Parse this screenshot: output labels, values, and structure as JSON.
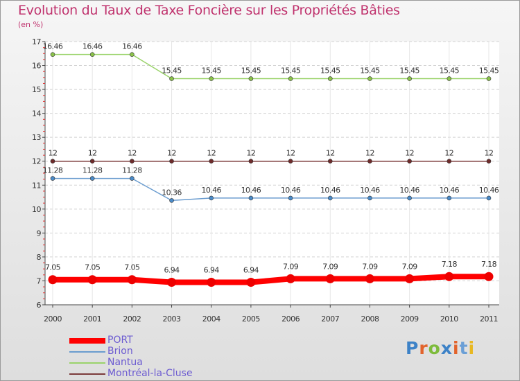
{
  "title": "Evolution du Taux de Taxe Foncière sur les Propriétés Bâties",
  "subtitle": "(en %)",
  "logo": {
    "l1": "P",
    "l2": "r",
    "l3": "o",
    "l4": "x",
    "l5": "i",
    "l6": "t",
    "l7": "i"
  },
  "chart_data": {
    "type": "line",
    "title": "Evolution du Taux de Taxe Foncière sur les Propriétés Bâties",
    "ylabel": "(en %)",
    "xlabel": "",
    "ylim": [
      6,
      17
    ],
    "yticks": [
      "6",
      "7",
      "8",
      "9",
      "10",
      "11",
      "12",
      "13",
      "14",
      "15",
      "16",
      "17"
    ],
    "categories": [
      "2000",
      "2001",
      "2002",
      "2003",
      "2004",
      "2005",
      "2006",
      "2007",
      "2008",
      "2009",
      "2010",
      "2011"
    ],
    "series": [
      {
        "name": "Nantua",
        "color": "#9ad36a",
        "marker": "#8bc34a",
        "values": [
          16.46,
          16.46,
          16.46,
          15.45,
          15.45,
          15.45,
          15.45,
          15.45,
          15.45,
          15.45,
          15.45,
          15.45
        ],
        "labels": [
          "16.46",
          "16.46",
          "16.46",
          "15.45",
          "15.45",
          "15.45",
          "15.45",
          "15.45",
          "15.45",
          "15.45",
          "15.45",
          "15.45"
        ]
      },
      {
        "name": "Montréal-la-Cluse",
        "color": "#7b3a3a",
        "marker": "#6e2b2b",
        "values": [
          12,
          12,
          12,
          12,
          12,
          12,
          12,
          12,
          12,
          12,
          12,
          12
        ],
        "labels": [
          "12",
          "12",
          "12",
          "12",
          "12",
          "12",
          "12",
          "12",
          "12",
          "12",
          "12",
          "12"
        ]
      },
      {
        "name": "Brion",
        "color": "#6a9ccf",
        "marker": "#4a8bc9",
        "values": [
          11.28,
          11.28,
          11.28,
          10.36,
          10.46,
          10.46,
          10.46,
          10.46,
          10.46,
          10.46,
          10.46,
          10.46
        ],
        "labels": [
          "11.28",
          "11.28",
          "11.28",
          "10.36",
          "10.46",
          "10.46",
          "10.46",
          "10.46",
          "10.46",
          "10.46",
          "10.46",
          "10.46"
        ]
      },
      {
        "name": "PORT",
        "color": "#ff0000",
        "marker": "#ee0000",
        "values": [
          7.05,
          7.05,
          7.05,
          6.94,
          6.94,
          6.94,
          7.09,
          7.09,
          7.09,
          7.09,
          7.18,
          7.18
        ],
        "labels": [
          "7.05",
          "7.05",
          "7.05",
          "6.94",
          "6.94",
          "6.94",
          "7.09",
          "7.09",
          "7.09",
          "7.09",
          "7.18",
          "7.18"
        ]
      }
    ],
    "legend": [
      {
        "name": "PORT",
        "color": "#ff0000"
      },
      {
        "name": "Brion",
        "color": "#6a9ccf"
      },
      {
        "name": "Nantua",
        "color": "#9ad36a"
      },
      {
        "name": "Montréal-la-Cluse",
        "color": "#7b3a3a"
      }
    ]
  }
}
